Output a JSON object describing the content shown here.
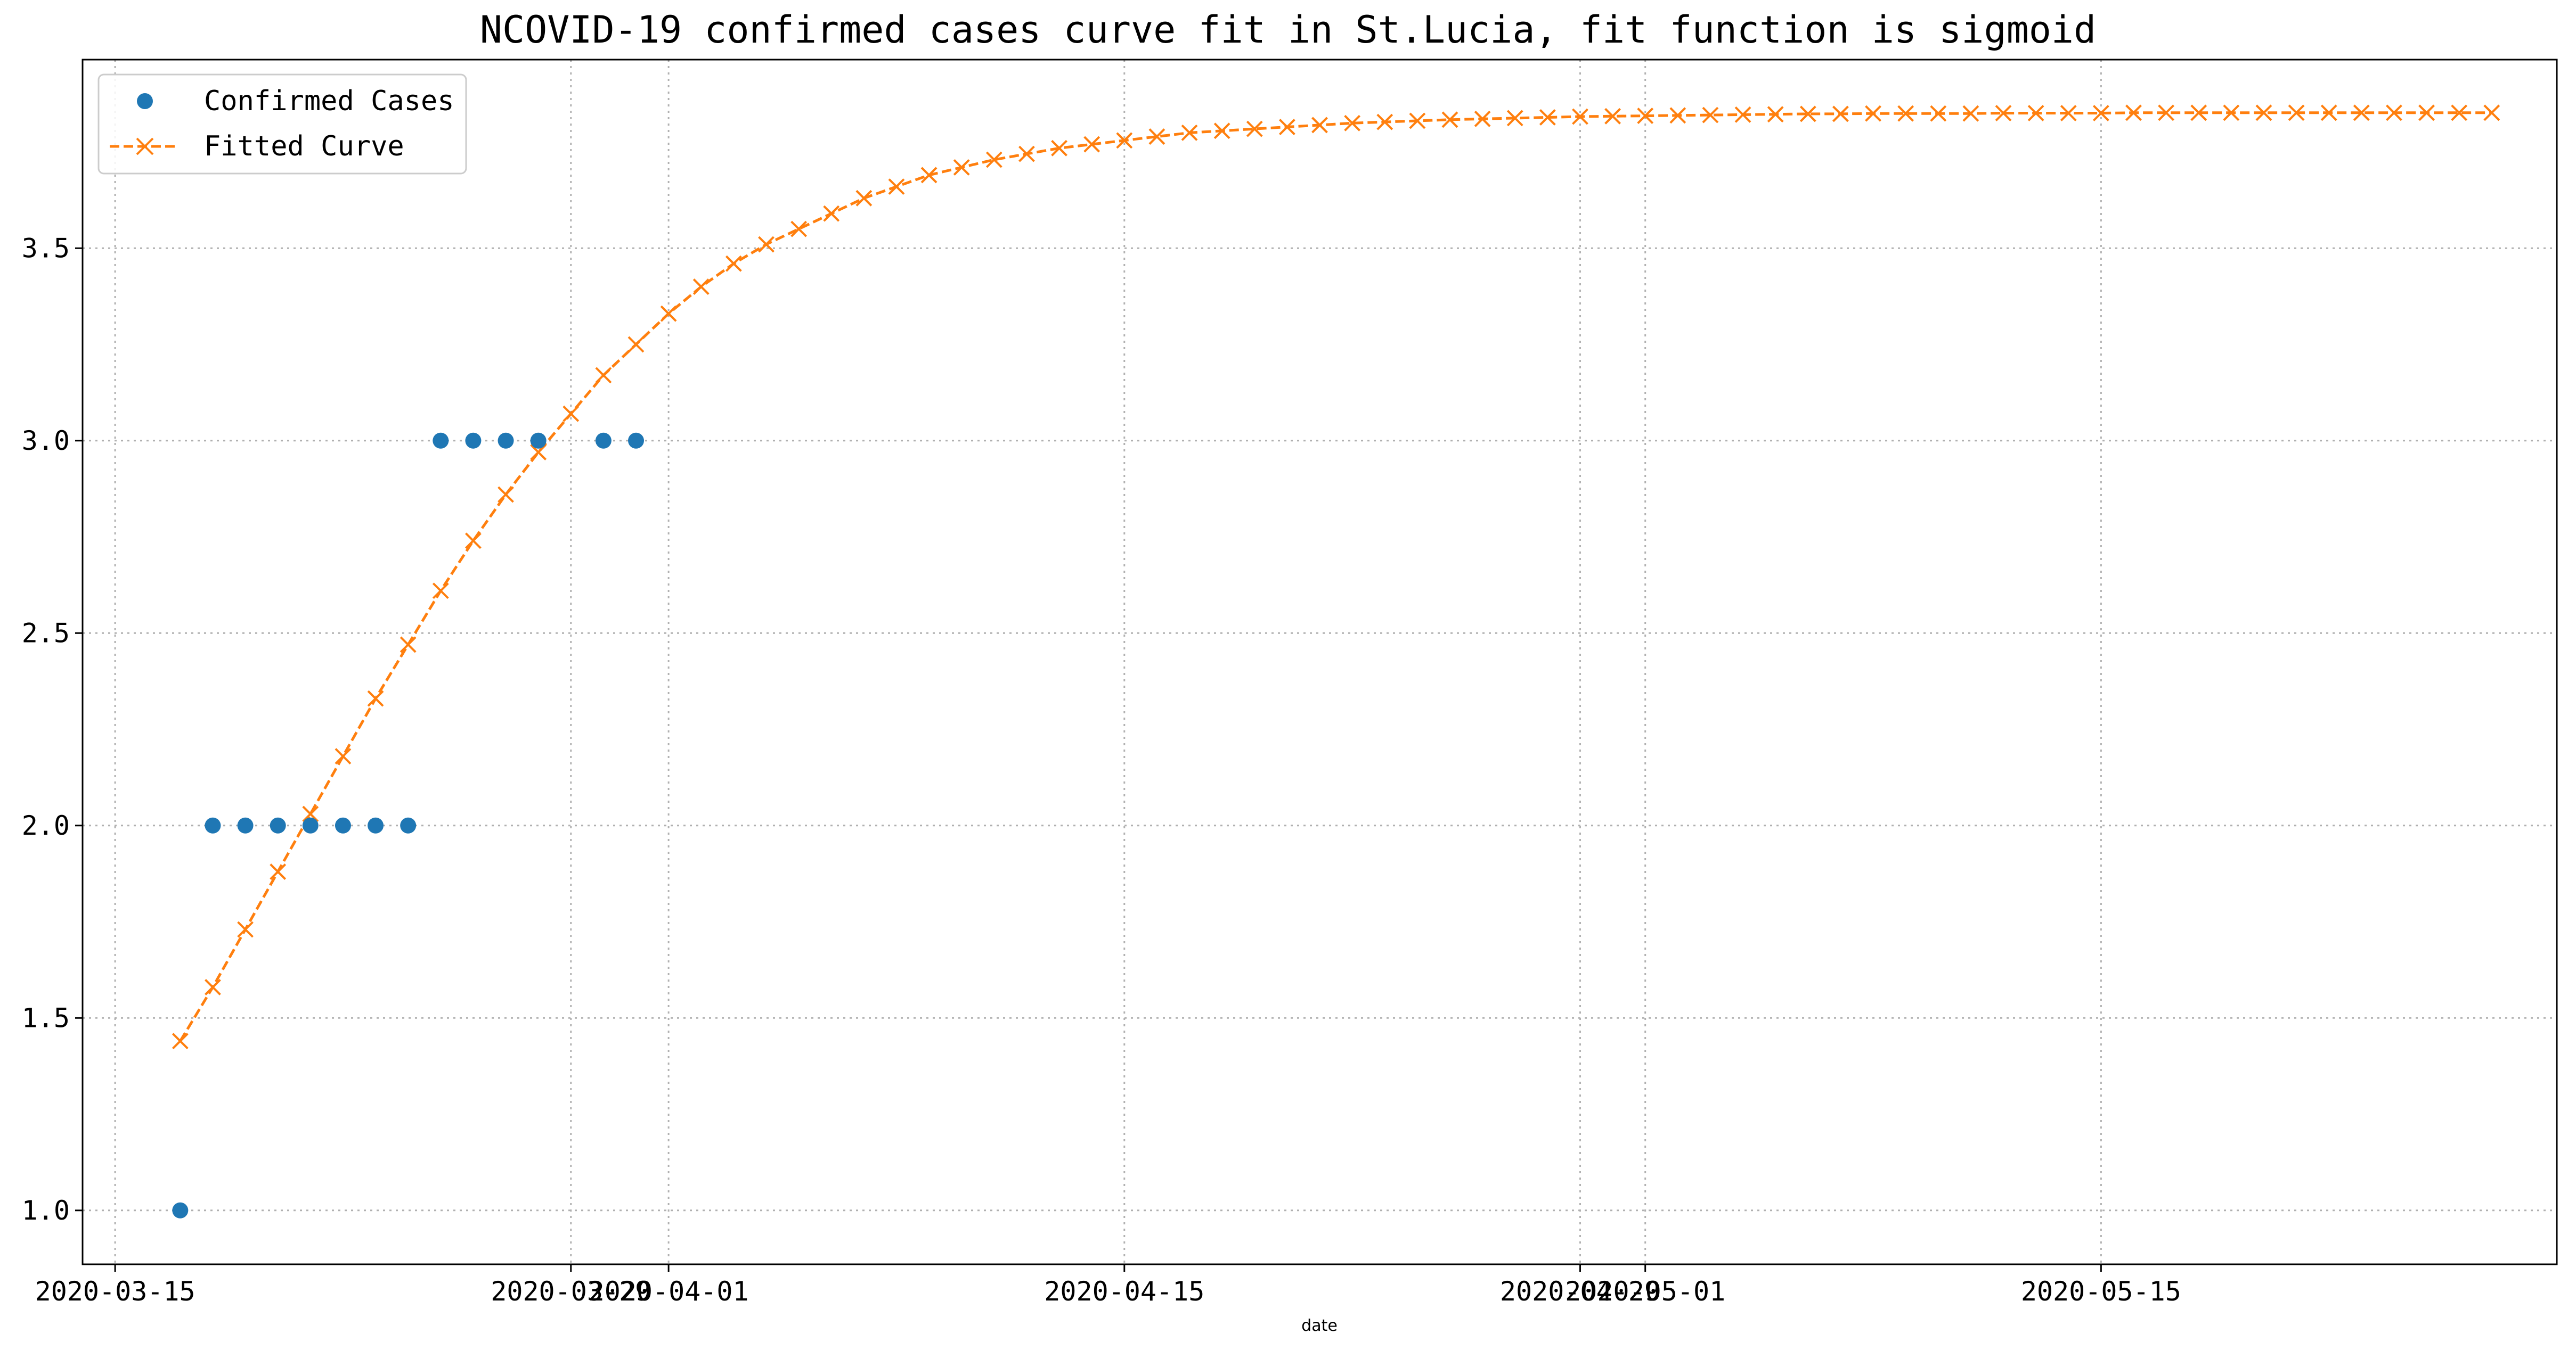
{
  "chart_data": {
    "type": "line",
    "title": "NCOVID-19 confirmed cases curve fit in St.Lucia, fit function is sigmoid",
    "xlabel": "date",
    "ylabel": "",
    "x_tick_labels": [
      "2020-03-15",
      "2020-03-29",
      "2020-04-01",
      "2020-04-15",
      "2020-04-29",
      "2020-05-01",
      "2020-05-15"
    ],
    "x_tick_dates": [
      "2020-03-15",
      "2020-03-29",
      "2020-04-01",
      "2020-04-15",
      "2020-04-29",
      "2020-05-01",
      "2020-05-15"
    ],
    "y_ticks": [
      1.0,
      1.5,
      2.0,
      2.5,
      3.0,
      3.5
    ],
    "y_tick_labels": [
      "1.0",
      "1.5",
      "2.0",
      "2.5",
      "3.0",
      "3.5"
    ],
    "xlim": [
      "2020-03-14",
      "2020-05-29"
    ],
    "ylim": [
      0.86,
      3.99
    ],
    "grid": true,
    "legend": "top-left",
    "series": [
      {
        "name": "Confirmed Cases",
        "style": "markers",
        "marker": "circle",
        "color": "#1f77b4",
        "points": [
          {
            "x": "2020-03-17",
            "y": 1
          },
          {
            "x": "2020-03-18",
            "y": 2
          },
          {
            "x": "2020-03-19",
            "y": 2
          },
          {
            "x": "2020-03-20",
            "y": 2
          },
          {
            "x": "2020-03-21",
            "y": 2
          },
          {
            "x": "2020-03-22",
            "y": 2
          },
          {
            "x": "2020-03-23",
            "y": 2
          },
          {
            "x": "2020-03-24",
            "y": 2
          },
          {
            "x": "2020-03-25",
            "y": 3
          },
          {
            "x": "2020-03-26",
            "y": 3
          },
          {
            "x": "2020-03-27",
            "y": 3
          },
          {
            "x": "2020-03-28",
            "y": 3
          },
          {
            "x": "2020-03-30",
            "y": 3
          },
          {
            "x": "2020-03-31",
            "y": 3
          }
        ]
      },
      {
        "name": "Fitted Curve",
        "style": "dashed-line-x-markers",
        "marker": "x",
        "color": "#ff7f0e",
        "x_start": "2020-03-17",
        "x_step_days": 1,
        "values": [
          1.44,
          1.58,
          1.73,
          1.88,
          2.03,
          2.18,
          2.33,
          2.47,
          2.61,
          2.74,
          2.86,
          2.97,
          3.07,
          3.17,
          3.25,
          3.33,
          3.4,
          3.46,
          3.51,
          3.55,
          3.59,
          3.63,
          3.66,
          3.69,
          3.71,
          3.73,
          3.745,
          3.76,
          3.77,
          3.78,
          3.79,
          3.8,
          3.805,
          3.81,
          3.815,
          3.82,
          3.825,
          3.828,
          3.831,
          3.834,
          3.836,
          3.838,
          3.84,
          3.842,
          3.843,
          3.844,
          3.845,
          3.846,
          3.847,
          3.848,
          3.849,
          3.849,
          3.85,
          3.85,
          3.85,
          3.85,
          3.851,
          3.851,
          3.851,
          3.851,
          3.852,
          3.852,
          3.852,
          3.852,
          3.852,
          3.852,
          3.852,
          3.852,
          3.852,
          3.852,
          3.852,
          3.852
        ]
      }
    ]
  }
}
